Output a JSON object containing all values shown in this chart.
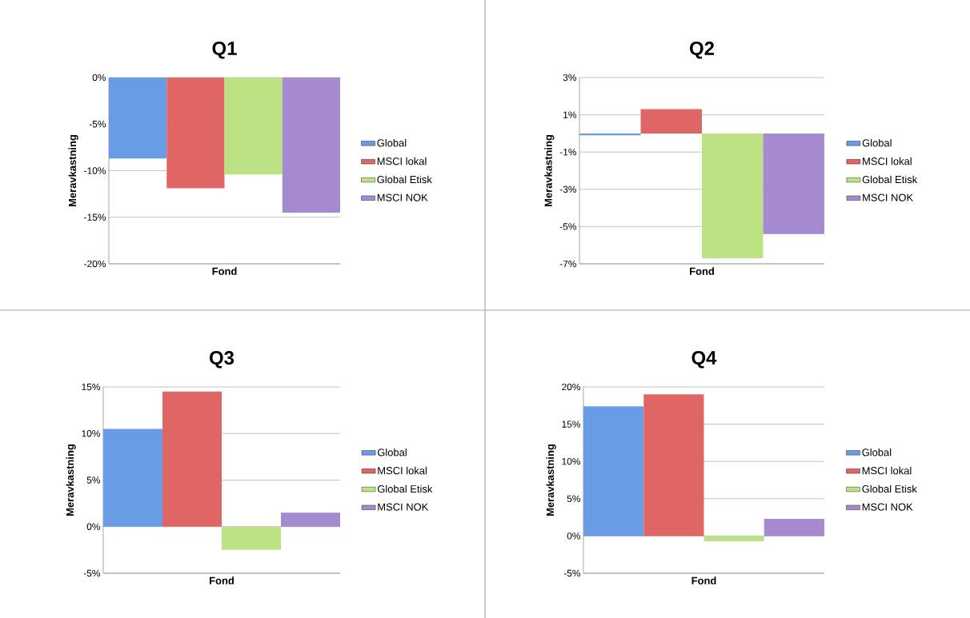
{
  "chart_data": [
    {
      "type": "bar",
      "title": "Q1",
      "xlabel": "Fond",
      "ylabel": "Meravkastning",
      "categories": [
        null
      ],
      "grid": "y",
      "legend": "right",
      "ylim": [
        -20,
        0
      ],
      "yticks": [
        {
          "value": -20,
          "label": "-20%"
        },
        {
          "value": -15,
          "label": "-15%"
        },
        {
          "value": -10,
          "label": "-10%"
        },
        {
          "value": -5,
          "label": "-5%"
        },
        {
          "value": 0,
          "label": "0%"
        }
      ],
      "series": [
        {
          "name": "Global",
          "color": "#6a9be6",
          "values": [
            -8.7
          ]
        },
        {
          "name": "MSCI lokal",
          "color": "#e06666",
          "values": [
            -11.9
          ]
        },
        {
          "name": "Global Etisk",
          "color": "#bde283",
          "values": [
            -10.4
          ]
        },
        {
          "name": "MSCI NOK",
          "color": "#a58ad0",
          "values": [
            -14.5
          ]
        }
      ]
    },
    {
      "type": "bar",
      "title": "Q2",
      "xlabel": "Fond",
      "ylabel": "Meravkastning",
      "categories": [
        null
      ],
      "grid": "y",
      "legend": "right",
      "ylim": [
        -7,
        3
      ],
      "yticks": [
        {
          "value": -7,
          "label": "-7%"
        },
        {
          "value": -5,
          "label": "-5%"
        },
        {
          "value": -3,
          "label": "-3%"
        },
        {
          "value": -1,
          "label": "-1%"
        },
        {
          "value": 1,
          "label": "1%"
        },
        {
          "value": 3,
          "label": "3%"
        }
      ],
      "series": [
        {
          "name": "Global",
          "color": "#6a9be6",
          "values": [
            -0.1
          ]
        },
        {
          "name": "MSCI lokal",
          "color": "#e06666",
          "values": [
            1.3
          ]
        },
        {
          "name": "Global Etisk",
          "color": "#bde283",
          "values": [
            -6.7
          ]
        },
        {
          "name": "MSCI NOK",
          "color": "#a58ad0",
          "values": [
            -5.4
          ]
        }
      ]
    },
    {
      "type": "bar",
      "title": "Q3",
      "xlabel": "Fond",
      "ylabel": "Meravkastning",
      "categories": [
        null
      ],
      "grid": "y",
      "legend": "right",
      "ylim": [
        -5,
        15
      ],
      "yticks": [
        {
          "value": -5,
          "label": "-5%"
        },
        {
          "value": 0,
          "label": "0%"
        },
        {
          "value": 5,
          "label": "5%"
        },
        {
          "value": 10,
          "label": "10%"
        },
        {
          "value": 15,
          "label": "15%"
        }
      ],
      "series": [
        {
          "name": "Global",
          "color": "#6a9be6",
          "values": [
            10.5
          ]
        },
        {
          "name": "MSCI lokal",
          "color": "#e06666",
          "values": [
            14.5
          ]
        },
        {
          "name": "Global Etisk",
          "color": "#bde283",
          "values": [
            -2.5
          ]
        },
        {
          "name": "MSCI NOK",
          "color": "#a58ad0",
          "values": [
            1.5
          ]
        }
      ]
    },
    {
      "type": "bar",
      "title": "Q4",
      "xlabel": "Fond",
      "ylabel": "Meravkastning",
      "categories": [
        null
      ],
      "grid": "y",
      "legend": "right",
      "ylim": [
        -5,
        20
      ],
      "yticks": [
        {
          "value": -5,
          "label": "-5%"
        },
        {
          "value": 0,
          "label": "0%"
        },
        {
          "value": 5,
          "label": "5%"
        },
        {
          "value": 10,
          "label": "10%"
        },
        {
          "value": 15,
          "label": "15%"
        },
        {
          "value": 20,
          "label": "20%"
        }
      ],
      "series": [
        {
          "name": "Global",
          "color": "#6a9be6",
          "values": [
            17.4
          ]
        },
        {
          "name": "MSCI lokal",
          "color": "#e06666",
          "values": [
            19.0
          ]
        },
        {
          "name": "Global Etisk",
          "color": "#bde283",
          "values": [
            -0.7
          ]
        },
        {
          "name": "MSCI NOK",
          "color": "#a58ad0",
          "values": [
            2.3
          ]
        }
      ]
    }
  ]
}
